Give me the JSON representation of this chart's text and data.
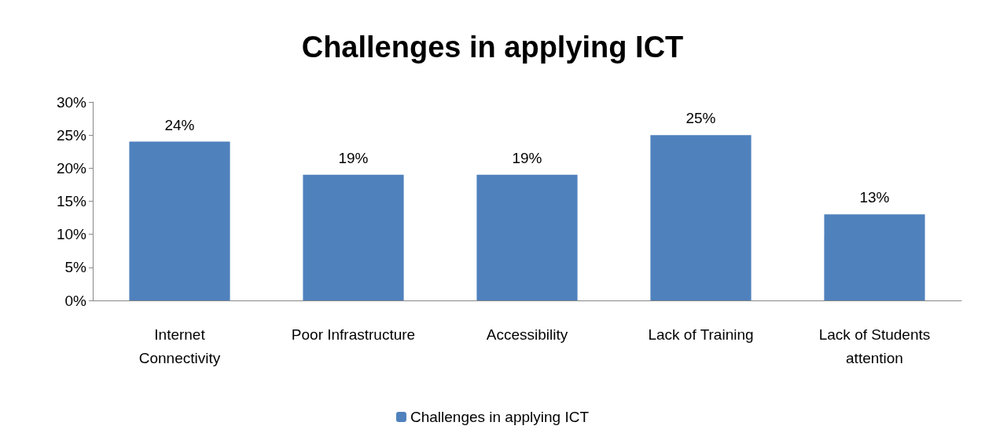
{
  "chart_data": {
    "type": "bar",
    "title": "Challenges in applying ICT",
    "categories": [
      "Internet\nConnectivity",
      "Poor Infrastructure",
      "Accessibility",
      "Lack of Training",
      "Lack of Students\nattention"
    ],
    "series": [
      {
        "name": "Challenges in applying ICT",
        "color": "#4f81bd",
        "values": [
          24,
          19,
          19,
          25,
          13
        ],
        "value_labels": [
          "24%",
          "19%",
          "19%",
          "25%",
          "13%"
        ]
      }
    ],
    "ylim": [
      0,
      30
    ],
    "yticks": [
      {
        "value": 0,
        "label": "0%"
      },
      {
        "value": 5,
        "label": "5%"
      },
      {
        "value": 10,
        "label": "10%"
      },
      {
        "value": 15,
        "label": "15%"
      },
      {
        "value": 20,
        "label": "20%"
      },
      {
        "value": 25,
        "label": "25%"
      },
      {
        "value": 30,
        "label": "30%"
      }
    ],
    "grid": false,
    "legend": "bottom"
  }
}
